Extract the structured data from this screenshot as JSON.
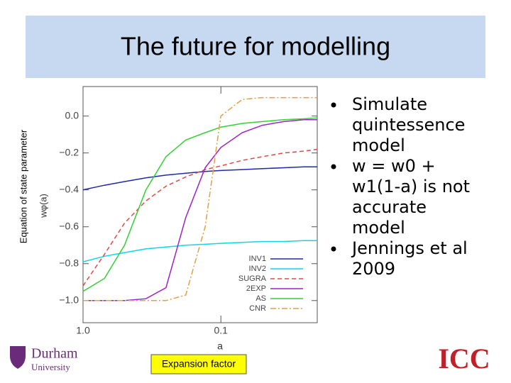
{
  "slide": {
    "title": "The future for modelling",
    "overlay_y_label": "Equation of state parameter",
    "overlay_x_label": "Expansion factor",
    "bullets": [
      [
        "Simulate",
        "quintessence",
        "model"
      ],
      [
        "w = w0 +",
        "w1(1-a) is not",
        "accurate",
        "model"
      ],
      [
        "Jennings et al",
        "2009"
      ]
    ],
    "logo_left": [
      "Durham",
      "University"
    ],
    "logo_right": "ICC"
  },
  "chart_data": {
    "type": "line",
    "x_label": "a",
    "y_label": "wφ(a)",
    "x_scale": "log",
    "legend": "lower right",
    "x": [
      1,
      0.7,
      0.5,
      0.35,
      0.25,
      0.18,
      0.13,
      0.1,
      0.07,
      0.05,
      0.035,
      0.025,
      0.02
    ],
    "xlim": [
      1,
      0.02
    ],
    "xticks": [
      {
        "value": 1,
        "label": "1.0"
      },
      0.1
    ],
    "ylim": [
      -1.12,
      0.16
    ],
    "yticks": [
      {
        "value": 0,
        "label": "0.0"
      },
      {
        "value": -0.2,
        "label": "−0.2"
      },
      {
        "value": -0.4,
        "label": "−0.4"
      },
      {
        "value": -0.6,
        "label": "−0.6"
      },
      {
        "value": -0.8,
        "label": "−0.8"
      },
      {
        "value": -1,
        "label": "−1.0"
      }
    ],
    "series": [
      {
        "name": "INV1",
        "color": "#1f2aa8",
        "style": "solid",
        "values": [
          -0.4,
          -0.375,
          -0.355,
          -0.335,
          -0.32,
          -0.31,
          -0.3,
          -0.295,
          -0.29,
          -0.285,
          -0.28,
          -0.275,
          -0.275
        ]
      },
      {
        "name": "INV2",
        "color": "#10d4ea",
        "style": "solid",
        "values": [
          -0.79,
          -0.76,
          -0.74,
          -0.72,
          -0.71,
          -0.7,
          -0.695,
          -0.69,
          -0.685,
          -0.68,
          -0.68,
          -0.675,
          -0.675
        ]
      },
      {
        "name": "SUGRA",
        "color": "#e04848",
        "style": "dashed",
        "values": [
          -0.92,
          -0.75,
          -0.58,
          -0.46,
          -0.38,
          -0.33,
          -0.29,
          -0.27,
          -0.24,
          -0.22,
          -0.2,
          -0.19,
          -0.18
        ]
      },
      {
        "name": "2EXP",
        "color": "#a020c8",
        "style": "solid",
        "values": [
          -1,
          -1,
          -1,
          -0.99,
          -0.93,
          -0.55,
          -0.28,
          -0.17,
          -0.09,
          -0.05,
          -0.03,
          -0.02,
          -0.02
        ]
      },
      {
        "name": "AS",
        "color": "#34d034",
        "style": "solid",
        "values": [
          -0.95,
          -0.88,
          -0.7,
          -0.4,
          -0.22,
          -0.13,
          -0.09,
          -0.06,
          -0.04,
          -0.03,
          -0.02,
          -0.015,
          -0.01
        ]
      },
      {
        "name": "CNR",
        "color": "#e0a048",
        "style": "dashdot",
        "values": [
          -1,
          -1,
          -1,
          -1,
          -1,
          -0.97,
          -0.6,
          0,
          0.09,
          0.1,
          0.1,
          0.1,
          0.1
        ]
      }
    ]
  }
}
